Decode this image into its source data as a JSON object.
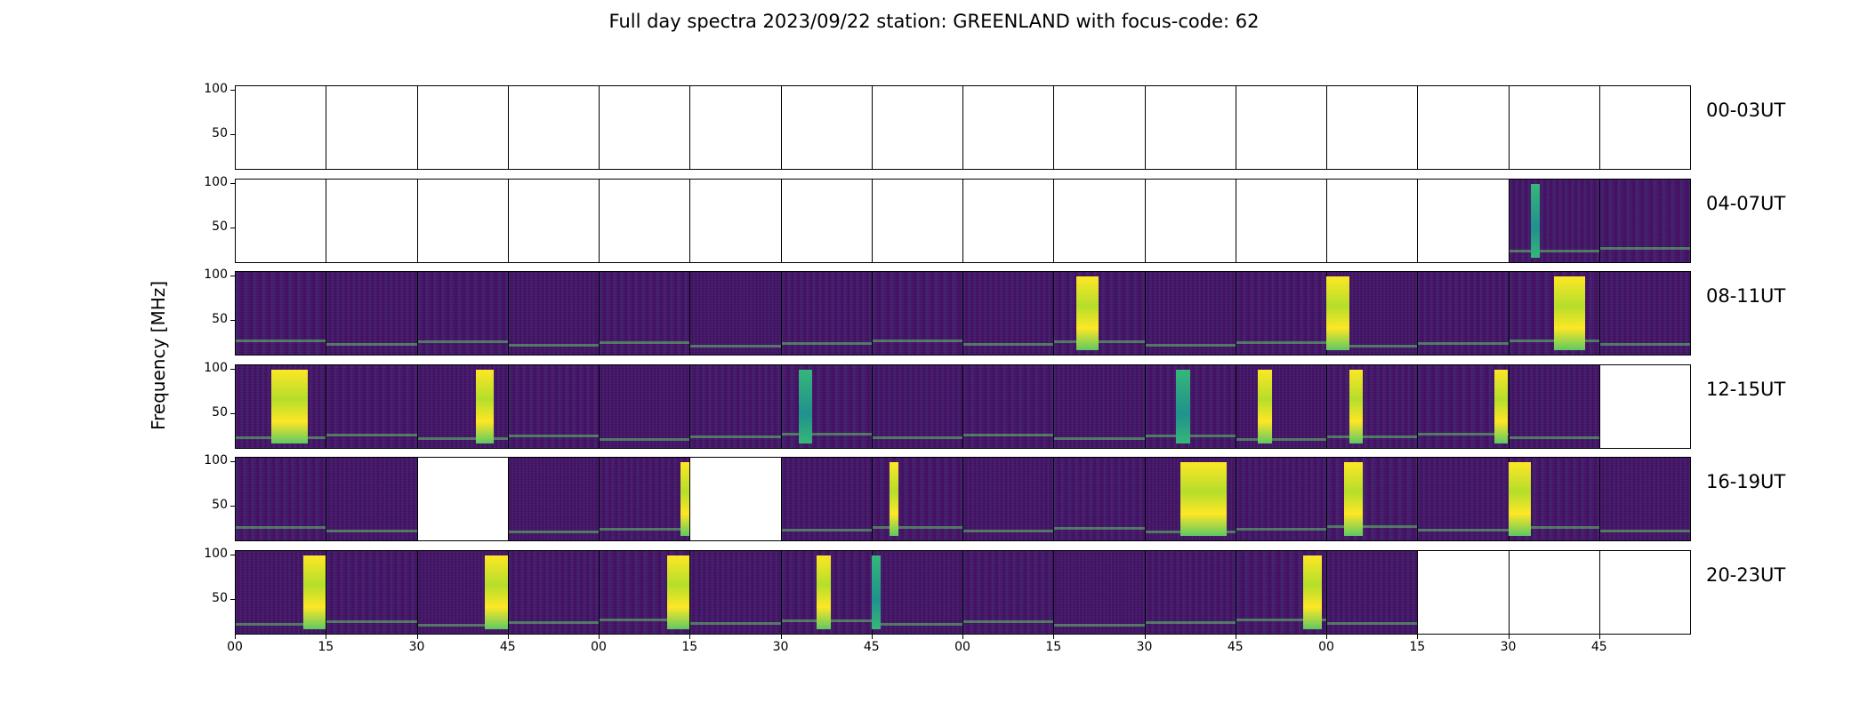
{
  "chart_data": {
    "type": "heatmap",
    "title": "Full day spectra 2023/09/22 station: GREENLAND with focus-code: 62",
    "ylabel": "Frequency [MHz]",
    "xlabel": "",
    "y_ticks": [
      50,
      100
    ],
    "x_tick_labels": [
      "00",
      "15",
      "30",
      "45",
      "00",
      "15",
      "30",
      "45",
      "00",
      "15",
      "30",
      "45",
      "00",
      "15",
      "30",
      "45"
    ],
    "colormap": "viridis",
    "colors": {
      "low": "#440154",
      "mid": "#21918c",
      "high": "#fde725",
      "empty": "#ffffff"
    },
    "rows": [
      {
        "label": "00-03UT",
        "panels": [
          "empty",
          "empty",
          "empty",
          "empty",
          "empty",
          "empty",
          "empty",
          "empty",
          "empty",
          "empty",
          "empty",
          "empty",
          "empty",
          "empty",
          "empty",
          "empty"
        ]
      },
      {
        "label": "04-07UT",
        "panels": [
          "empty",
          "empty",
          "empty",
          "empty",
          "empty",
          "empty",
          "empty",
          "empty",
          "empty",
          "empty",
          "empty",
          "empty",
          "empty",
          "empty",
          "data",
          "data"
        ]
      },
      {
        "label": "08-11UT",
        "panels": [
          "data",
          "data",
          "data",
          "data",
          "data",
          "data",
          "data",
          "data",
          "data",
          "data",
          "data",
          "data",
          "data",
          "data",
          "data",
          "data"
        ]
      },
      {
        "label": "12-15UT",
        "panels": [
          "data",
          "data",
          "data",
          "data",
          "data",
          "data",
          "data",
          "data",
          "data",
          "data",
          "data",
          "data",
          "data",
          "data",
          "data",
          "empty"
        ]
      },
      {
        "label": "16-19UT",
        "panels": [
          "data",
          "data",
          "empty",
          "data",
          "data",
          "empty",
          "data",
          "data",
          "data",
          "data",
          "data",
          "data",
          "data",
          "data",
          "data",
          "data"
        ]
      },
      {
        "label": "20-23UT",
        "panels": [
          "data",
          "data",
          "data",
          "data",
          "data",
          "data",
          "data",
          "data",
          "data",
          "data",
          "data",
          "data",
          "data",
          "empty",
          "empty",
          "empty"
        ]
      }
    ],
    "bursts": [
      {
        "row": 1,
        "panel": 14,
        "start": 0.25,
        "end": 0.35,
        "strength": "mid"
      },
      {
        "row": 2,
        "panel": 9,
        "start": 0.25,
        "end": 0.5,
        "strength": "high"
      },
      {
        "row": 2,
        "panel": 12,
        "start": 0.0,
        "end": 0.25,
        "strength": "high"
      },
      {
        "row": 2,
        "panel": 14,
        "start": 0.5,
        "end": 0.85,
        "strength": "high"
      },
      {
        "row": 3,
        "panel": 0,
        "start": 0.4,
        "end": 0.8,
        "strength": "high"
      },
      {
        "row": 3,
        "panel": 2,
        "start": 0.65,
        "end": 0.85,
        "strength": "high"
      },
      {
        "row": 3,
        "panel": 6,
        "start": 0.2,
        "end": 0.35,
        "strength": "mid"
      },
      {
        "row": 3,
        "panel": 10,
        "start": 0.35,
        "end": 0.5,
        "strength": "mid"
      },
      {
        "row": 3,
        "panel": 11,
        "start": 0.25,
        "end": 0.4,
        "strength": "high"
      },
      {
        "row": 3,
        "panel": 12,
        "start": 0.25,
        "end": 0.4,
        "strength": "high"
      },
      {
        "row": 3,
        "panel": 13,
        "start": 0.85,
        "end": 1.0,
        "strength": "high"
      },
      {
        "row": 4,
        "panel": 4,
        "start": 0.9,
        "end": 1.0,
        "strength": "high"
      },
      {
        "row": 4,
        "panel": 7,
        "start": 0.2,
        "end": 0.3,
        "strength": "high"
      },
      {
        "row": 4,
        "panel": 10,
        "start": 0.4,
        "end": 0.9,
        "strength": "high"
      },
      {
        "row": 4,
        "panel": 12,
        "start": 0.2,
        "end": 0.4,
        "strength": "high"
      },
      {
        "row": 4,
        "panel": 14,
        "start": 0.0,
        "end": 0.25,
        "strength": "high"
      },
      {
        "row": 5,
        "panel": 0,
        "start": 0.75,
        "end": 1.0,
        "strength": "high"
      },
      {
        "row": 5,
        "panel": 2,
        "start": 0.75,
        "end": 1.0,
        "strength": "high"
      },
      {
        "row": 5,
        "panel": 4,
        "start": 0.75,
        "end": 1.0,
        "strength": "high"
      },
      {
        "row": 5,
        "panel": 6,
        "start": 0.4,
        "end": 0.55,
        "strength": "high"
      },
      {
        "row": 5,
        "panel": 7,
        "start": 0.0,
        "end": 0.1,
        "strength": "mid"
      },
      {
        "row": 5,
        "panel": 11,
        "start": 0.75,
        "end": 0.95,
        "strength": "high"
      }
    ]
  }
}
